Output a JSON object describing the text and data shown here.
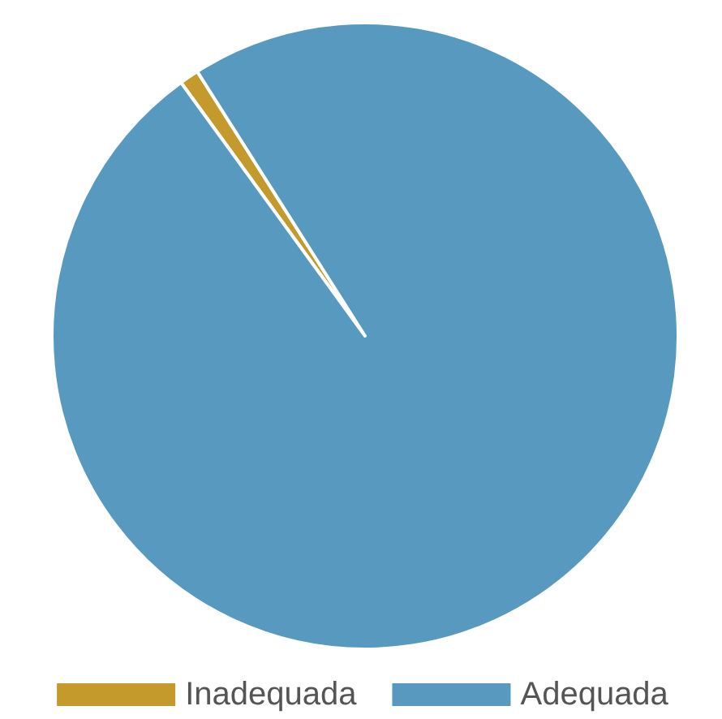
{
  "chart_data": {
    "type": "pie",
    "categories": [
      "Inadequada",
      "Adequada"
    ],
    "values": [
      1,
      99
    ],
    "colors": [
      "#c49a2c",
      "#5899bf"
    ],
    "legend": "bottom"
  }
}
